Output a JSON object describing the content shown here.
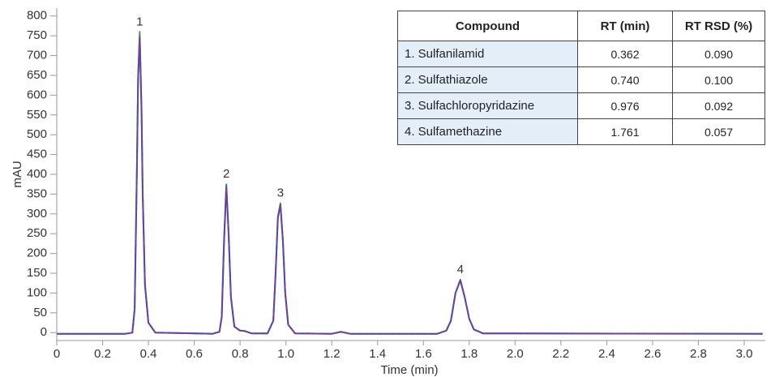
{
  "chart_data": {
    "type": "line",
    "x_label": "Time (min)",
    "y_label": "mAU",
    "x": [
      0,
      0.3,
      0.33,
      0.34,
      0.35,
      0.355,
      0.362,
      0.37,
      0.375,
      0.385,
      0.4,
      0.43,
      0.68,
      0.71,
      0.72,
      0.73,
      0.74,
      0.75,
      0.76,
      0.775,
      0.8,
      0.82,
      0.85,
      0.92,
      0.945,
      0.955,
      0.965,
      0.976,
      0.987,
      0.997,
      1.01,
      1.04,
      1.2,
      1.24,
      1.28,
      1.66,
      1.7,
      1.72,
      1.74,
      1.761,
      1.78,
      1.8,
      1.82,
      1.86,
      3.08
    ],
    "series": [
      {
        "color": "#3aa66a",
        "values": [
          -3,
          -3,
          0,
          60,
          425,
          650,
          760,
          565,
          352,
          120,
          25,
          0,
          -3,
          2,
          40,
          232,
          375,
          252,
          90,
          15,
          5,
          4,
          -2,
          -2,
          30,
          151,
          293,
          327,
          231,
          100,
          20,
          -2,
          -3,
          2,
          -3,
          -3,
          5,
          30,
          100,
          134,
          90,
          35,
          8,
          -2,
          -3
        ]
      },
      {
        "color": "#3b4fb8",
        "values": [
          -3,
          -3,
          0,
          60,
          420,
          640,
          745,
          560,
          350,
          120,
          25,
          0,
          -3,
          2,
          40,
          230,
          368,
          250,
          90,
          15,
          5,
          4,
          -2,
          -2,
          30,
          150,
          290,
          322,
          230,
          100,
          20,
          -2,
          -3,
          2,
          -3,
          -3,
          5,
          30,
          100,
          132,
          90,
          35,
          8,
          -2,
          -3
        ]
      },
      {
        "color": "#b0306a",
        "dashed": true,
        "values": [
          -3,
          -3,
          0,
          60,
          422,
          645,
          750,
          562,
          351,
          120,
          25,
          0,
          -3,
          2,
          40,
          231,
          372,
          251,
          90,
          15,
          5,
          4,
          -2,
          -2,
          30,
          150,
          291,
          324,
          230,
          100,
          20,
          -2,
          -3,
          2,
          -3,
          -3,
          5,
          30,
          100,
          133,
          90,
          35,
          8,
          -2,
          -3
        ]
      }
    ],
    "annotations": [
      {
        "text": "1",
        "x": 0.362,
        "y": 760
      },
      {
        "text": "2",
        "x": 0.74,
        "y": 375
      },
      {
        "text": "3",
        "x": 0.976,
        "y": 327
      },
      {
        "text": "4",
        "x": 1.761,
        "y": 134
      }
    ],
    "xlim": [
      0,
      3.08
    ],
    "ylim": [
      -20,
      820
    ],
    "xticks": [
      0,
      0.2,
      0.4,
      0.6,
      0.8,
      {
        "value": 1,
        "label": "1.0"
      },
      1.2,
      1.4,
      1.6,
      1.8,
      {
        "value": 2,
        "label": "2.0"
      },
      2.2,
      2.4,
      2.6,
      2.8,
      {
        "value": 3,
        "label": "3.0"
      }
    ],
    "yticks": [
      0,
      50,
      100,
      150,
      200,
      250,
      300,
      350,
      400,
      450,
      500,
      550,
      600,
      650,
      700,
      750,
      800
    ]
  },
  "table": {
    "header": [
      "Compound",
      "RT (min)",
      "RT RSD (%)"
    ],
    "rows": [
      [
        "1. Sulfanilamid",
        "0.362",
        "0.090"
      ],
      [
        "2. Sulfathiazole",
        "0.740",
        "0.100"
      ],
      [
        "3. Sulfachloropyridazine",
        "0.976",
        "0.092"
      ],
      [
        "4. Sulfamethazine",
        "1.761",
        "0.057"
      ]
    ]
  }
}
